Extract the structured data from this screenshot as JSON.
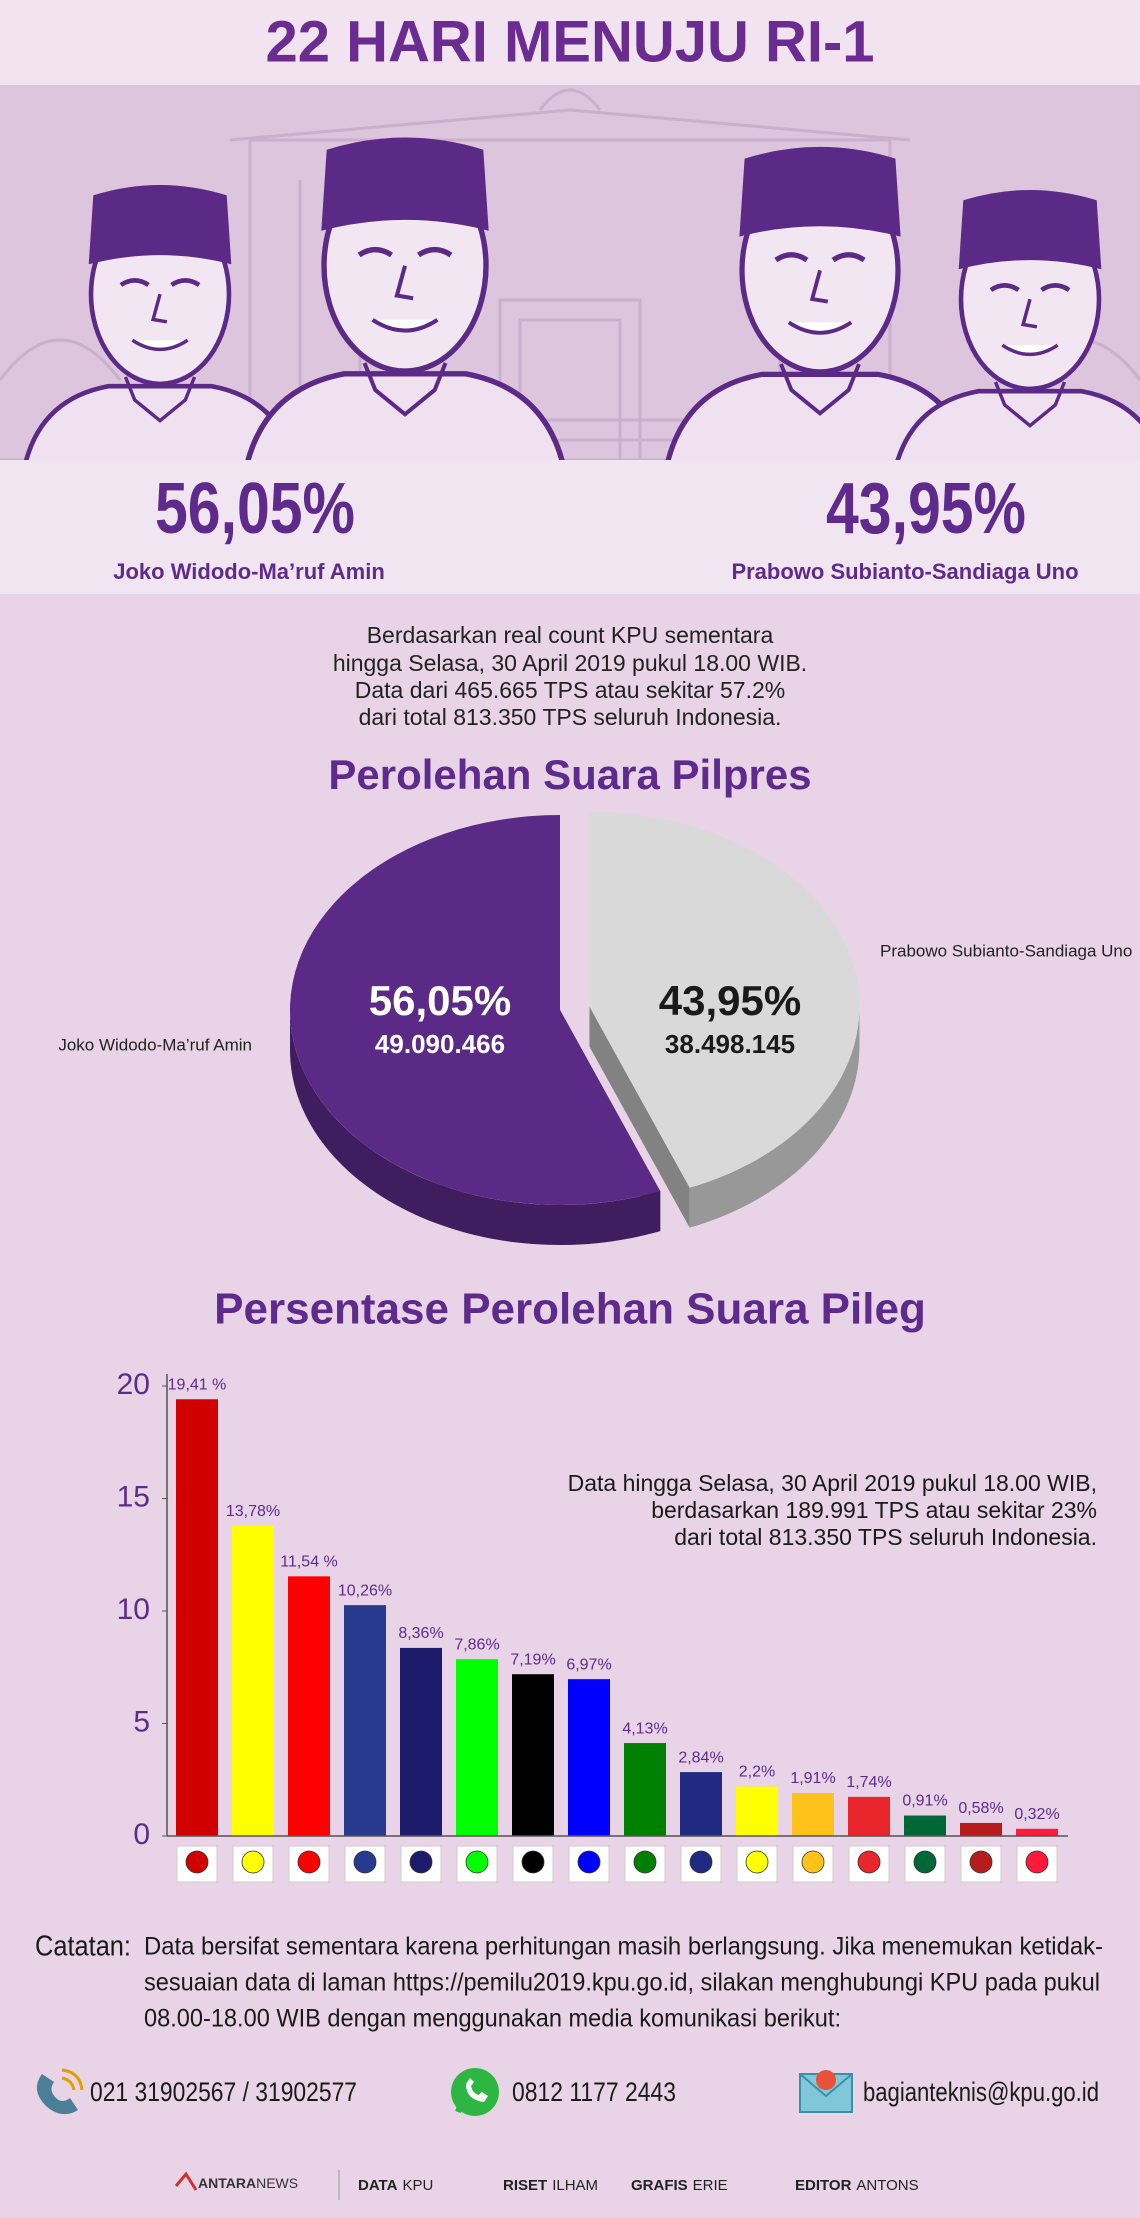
{
  "header": {
    "title": "22 HARI MENUJU RI-1"
  },
  "summary": [
    "Berdasarkan real count KPU sementara",
    "hingga Selasa, 30 April 2019 pukul 18.00 WIB.",
    "Data dari 465.665 TPS atau sekitar 57.2%",
    "dari total 813.350 TPS seluruh Indonesia."
  ],
  "chart_data": [
    {
      "type": "pie",
      "title": "Perolehan Suara Pilpres",
      "categories": [
        "Joko Widodo-Ma’ruf Amin",
        "Prabowo Subianto-Sandiaga Uno"
      ],
      "values": [
        56.05,
        43.95
      ],
      "value_labels": [
        "56,05%",
        "43,95%"
      ],
      "votes": [
        49090466,
        38498145
      ],
      "vote_labels": [
        "49.090.466",
        "38.498.145"
      ],
      "colors": [
        "#5b2a86",
        "#d9d9d9"
      ]
    },
    {
      "type": "bar",
      "title": "Persentase Perolehan Suara Pileg",
      "categories": [
        null,
        null,
        null,
        null,
        null,
        null,
        null,
        null,
        null,
        null,
        null,
        null,
        null,
        null,
        null,
        null
      ],
      "values": [
        19.41,
        13.78,
        11.54,
        10.26,
        8.36,
        7.86,
        7.19,
        6.97,
        4.13,
        2.84,
        2.2,
        1.91,
        1.74,
        0.91,
        0.58,
        0.32
      ],
      "value_labels": [
        "19,41 %",
        "13,78%",
        "11,54 %",
        "10,26%",
        "8,36%",
        "7,86%",
        "7,19%",
        "6,97%",
        "4,13%",
        "2,84%",
        "2,2%",
        "1,91%",
        "1,74%",
        "0,91%",
        "0,58%",
        "0,32%"
      ],
      "colors": [
        "#d00000",
        "#ffff00",
        "#ff0000",
        "#283a8e",
        "#1b1a6b",
        "#00ff00",
        "#000000",
        "#0000ff",
        "#008000",
        "#1f2a80",
        "#ffff00",
        "#ffc21a",
        "#e8262b",
        "#006837",
        "#b71c1c",
        "#ff1a3c"
      ],
      "ylim": [
        0,
        20
      ],
      "yticks": [
        0,
        5,
        10,
        15,
        20
      ],
      "annotation": [
        "Data hingga Selasa, 30 April 2019 pukul 18.00 WIB,",
        "berdasarkan 189.991 TPS atau sekitar 23%",
        "dari total 813.350 TPS seluruh Indonesia."
      ]
    }
  ],
  "note": {
    "label": "Catatan:",
    "lines": [
      "Data bersifat sementara karena perhitungan masih berlangsung. Jika menemukan ketidak-",
      "sesuaian data di laman https://pemilu2019.kpu.go.id, silakan menghubungi KPU pada pukul",
      "08.00-18.00 WIB dengan menggunakan media komunikasi berikut:"
    ]
  },
  "contacts": {
    "phone": "021 31902567 / 31902577",
    "whatsapp": "0812 1177 2443",
    "email": "bagianteknis@kpu.go.id"
  },
  "footer": {
    "logo": [
      "ANTARA",
      "NEWS"
    ],
    "credits": [
      {
        "role": "DATA",
        "name": "KPU"
      },
      {
        "role": "RISET",
        "name": "ILHAM"
      },
      {
        "role": "GRAFIS",
        "name": "ERIE"
      },
      {
        "role": "EDITOR",
        "name": "ANTONS"
      }
    ]
  }
}
